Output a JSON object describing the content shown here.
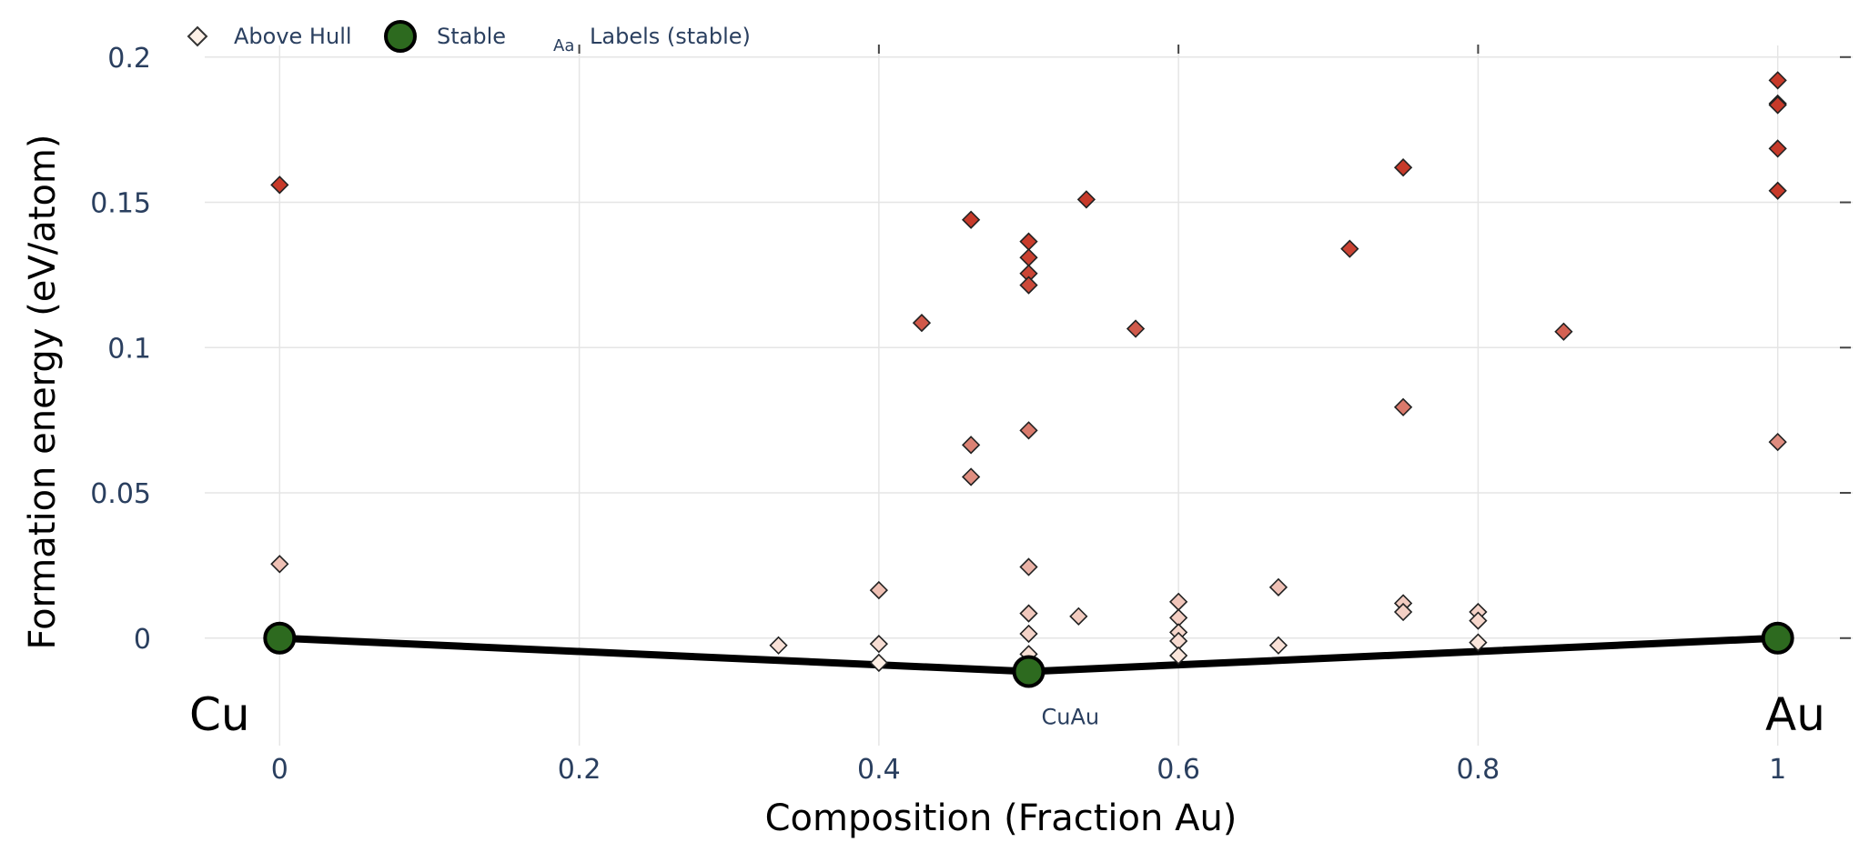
{
  "chart_data": {
    "type": "scatter",
    "xlabel": "Composition (Fraction Au)",
    "ylabel": "Formation energy (eV/atom)",
    "xlim": [
      -0.05,
      1.05
    ],
    "ylim": [
      -0.037,
      0.204
    ],
    "x_ticks": [
      0,
      0.2,
      0.4,
      0.6,
      0.8,
      1
    ],
    "x_tick_labels": [
      "0",
      "0.2",
      "0.4",
      "0.6",
      "0.8",
      "1"
    ],
    "y_ticks": [
      0,
      0.05,
      0.1,
      0.15,
      0.2
    ],
    "y_tick_labels": [
      "0",
      "0.05",
      "0.1",
      "0.15",
      "0.2"
    ],
    "grid": true,
    "legend_placement": "top-left",
    "legend": {
      "above_hull": "Above Hull",
      "stable": "Stable",
      "labels_icon": "Aa",
      "labels": "Labels (stable)"
    },
    "end_labels": {
      "left": "Cu",
      "right": "Au"
    },
    "colors": {
      "stable_fill": "#2d6a1f",
      "hull_line": "#000000",
      "above_hull_low": "#fdf0e6",
      "above_hull_high": "#c73a2a",
      "grid": "#e5e5e5",
      "tick_text": "#2a3f5f"
    },
    "hull": {
      "x": [
        0,
        0.5,
        1
      ],
      "y": [
        0,
        -0.0115,
        0
      ]
    },
    "series": [
      {
        "name": "Stable",
        "points": [
          {
            "x": 0,
            "y": 0
          },
          {
            "x": 0.5,
            "y": -0.0115,
            "label": "CuAu"
          },
          {
            "x": 1,
            "y": 0
          }
        ]
      },
      {
        "name": "Above Hull",
        "points": [
          {
            "x": 0,
            "y": 0.156
          },
          {
            "x": 0,
            "y": 0.0255
          },
          {
            "x": 0.333,
            "y": -0.0025
          },
          {
            "x": 0.4,
            "y": 0.0165
          },
          {
            "x": 0.4,
            "y": -0.002
          },
          {
            "x": 0.4,
            "y": -0.0085
          },
          {
            "x": 0.4286,
            "y": 0.1085
          },
          {
            "x": 0.4615,
            "y": 0.144
          },
          {
            "x": 0.4615,
            "y": 0.0665
          },
          {
            "x": 0.4615,
            "y": 0.0555
          },
          {
            "x": 0.5,
            "y": 0.1365
          },
          {
            "x": 0.5,
            "y": 0.131
          },
          {
            "x": 0.5,
            "y": 0.1255
          },
          {
            "x": 0.5,
            "y": 0.1215
          },
          {
            "x": 0.5,
            "y": 0.0715
          },
          {
            "x": 0.5,
            "y": 0.0245
          },
          {
            "x": 0.5,
            "y": 0.0085
          },
          {
            "x": 0.5,
            "y": 0.0015
          },
          {
            "x": 0.5,
            "y": -0.0055
          },
          {
            "x": 0.5333,
            "y": 0.0075
          },
          {
            "x": 0.5385,
            "y": 0.151
          },
          {
            "x": 0.5714,
            "y": 0.1065
          },
          {
            "x": 0.6,
            "y": 0.0125
          },
          {
            "x": 0.6,
            "y": 0.007
          },
          {
            "x": 0.6,
            "y": 0.002
          },
          {
            "x": 0.6,
            "y": -0.001
          },
          {
            "x": 0.6,
            "y": -0.006
          },
          {
            "x": 0.6667,
            "y": 0.0175
          },
          {
            "x": 0.6667,
            "y": -0.0025
          },
          {
            "x": 0.7143,
            "y": 0.134
          },
          {
            "x": 0.75,
            "y": 0.162
          },
          {
            "x": 0.75,
            "y": 0.0795
          },
          {
            "x": 0.75,
            "y": 0.012
          },
          {
            "x": 0.75,
            "y": 0.009
          },
          {
            "x": 0.8,
            "y": 0.009
          },
          {
            "x": 0.8,
            "y": 0.006
          },
          {
            "x": 0.8,
            "y": -0.0015
          },
          {
            "x": 0.8571,
            "y": 0.1055
          },
          {
            "x": 1,
            "y": 0.192
          },
          {
            "x": 1,
            "y": 0.184
          },
          {
            "x": 1,
            "y": 0.1835
          },
          {
            "x": 1,
            "y": 0.1685
          },
          {
            "x": 1,
            "y": 0.154
          },
          {
            "x": 1,
            "y": 0.0675
          },
          {
            "x": 1,
            "y": 0
          }
        ]
      }
    ]
  }
}
